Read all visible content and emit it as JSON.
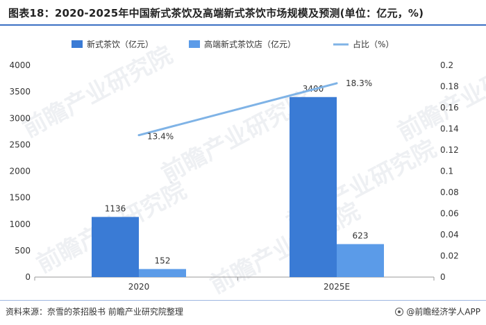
{
  "header": {
    "title": "图表18：2020-2025年中国新式茶饮及高端新式茶饮市场规模及预测(单位：亿元，%)"
  },
  "footer": {
    "source": "资料来源：奈雪的茶招股书 前瞻产业研究院整理",
    "brand": "@前瞻经济学人APP"
  },
  "watermark": "前瞻产业研究院",
  "colors": {
    "series1": "#3a7bd5",
    "series2": "#5b9be8",
    "line": "#7fb3e6"
  },
  "chart_data": {
    "type": "bar",
    "title": "",
    "categories": [
      "2020",
      "2025E"
    ],
    "series": [
      {
        "name": "新式茶饮（亿元）",
        "type": "bar",
        "axis": "left",
        "values": [
          1136,
          3400
        ]
      },
      {
        "name": "高端新式茶饮店（亿元）",
        "type": "bar",
        "axis": "left",
        "values": [
          152,
          623
        ]
      },
      {
        "name": "占比（%）",
        "type": "line",
        "axis": "right",
        "values": [
          0.134,
          0.183
        ],
        "labels": [
          "13.4%",
          "18.3%"
        ]
      }
    ],
    "ylim_left": [
      0,
      4000
    ],
    "yticks_left": [
      "0",
      "500",
      "1000",
      "1500",
      "2000",
      "2500",
      "3000",
      "3500",
      "4000"
    ],
    "ylim_right": [
      0,
      0.2
    ],
    "yticks_right": [
      "0",
      "0.02",
      "0.04",
      "0.06",
      "0.08",
      "0.1",
      "0.12",
      "0.14",
      "0.16",
      "0.18",
      "0.2"
    ],
    "legend_position": "top",
    "grid": false
  }
}
